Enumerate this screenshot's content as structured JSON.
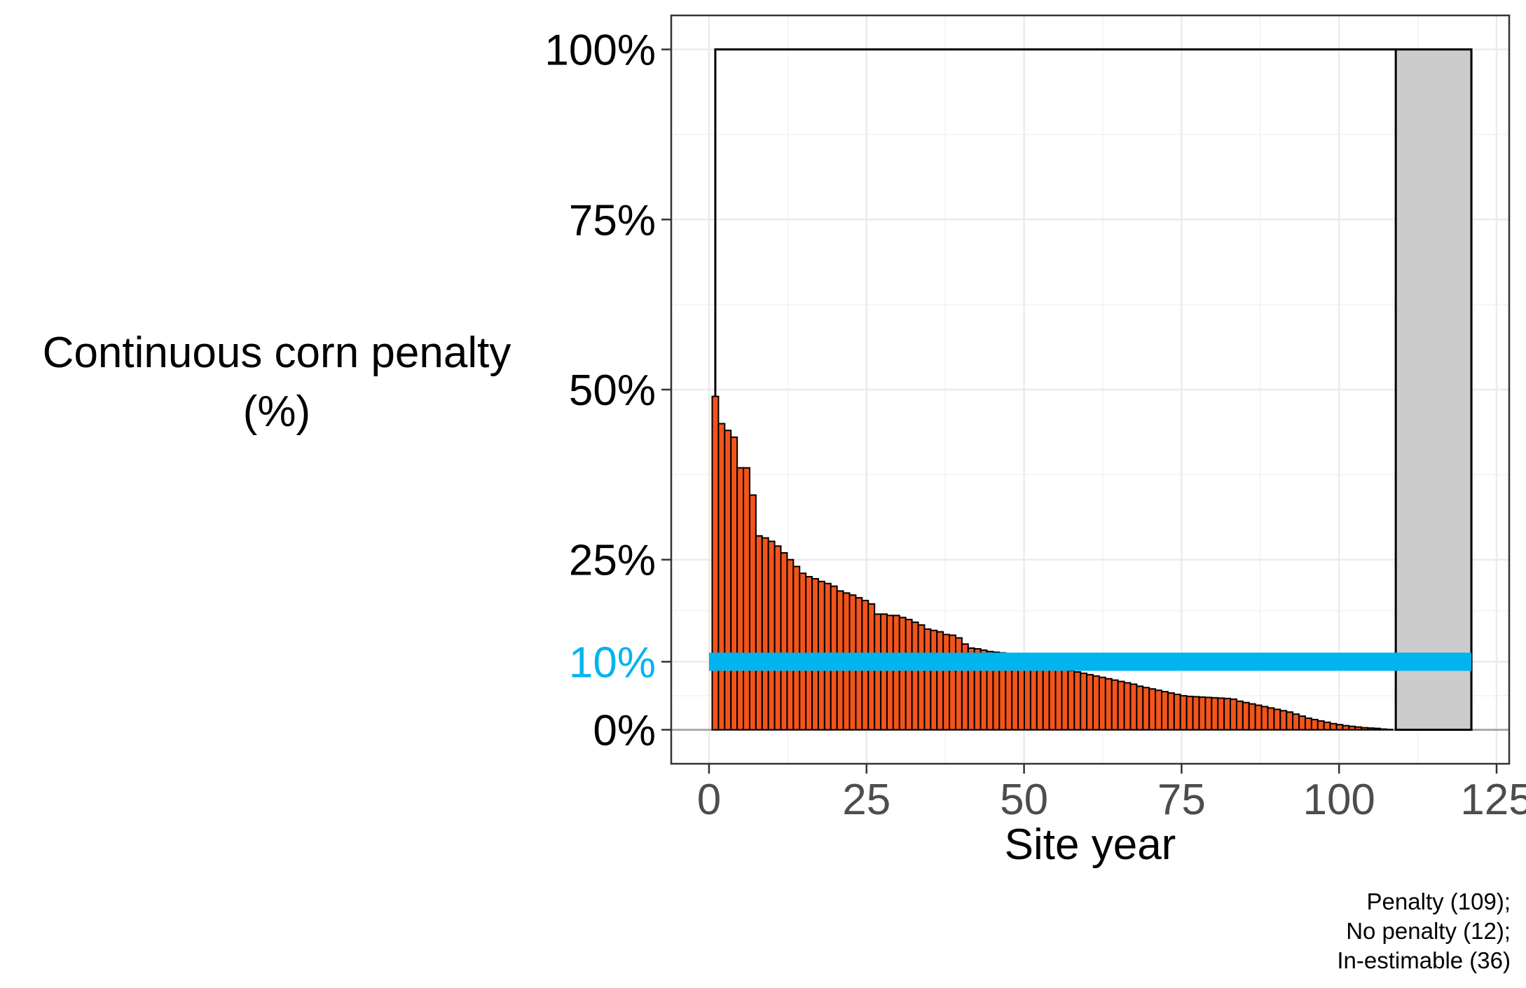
{
  "chart_data": {
    "type": "bar",
    "title": "",
    "xlabel": "Site year",
    "ylabel_lines": [
      "Continuous corn penalty",
      "(%)"
    ],
    "xlim": [
      -6,
      127
    ],
    "ylim": [
      -5,
      105
    ],
    "x_ticks": [
      0,
      25,
      50,
      75,
      100,
      125
    ],
    "x_tick_labels": [
      "0",
      "25",
      "50",
      "75",
      "100",
      "125"
    ],
    "y_ticks": [
      0,
      10,
      25,
      50,
      75,
      100
    ],
    "y_tick_labels": [
      "0%",
      "10%",
      "25%",
      "50%",
      "75%",
      "100%"
    ],
    "grid": true,
    "legend": "none",
    "reference_line": {
      "y": 10,
      "x_range": [
        0,
        121
      ],
      "label": "10%",
      "color": "#00B4F0"
    },
    "penalty_bars": {
      "x_start": 1,
      "x_end": 109,
      "fill": "#F2541B",
      "values": [
        49,
        45,
        44,
        43,
        38.5,
        38.5,
        34.5,
        28.5,
        28.2,
        27.7,
        27,
        26,
        25,
        24,
        23,
        22.5,
        22.2,
        21.8,
        21.5,
        21.1,
        20.4,
        20.1,
        19.8,
        19.4,
        19,
        18.5,
        17,
        17,
        16.8,
        16.8,
        16.5,
        16.2,
        15.8,
        15.4,
        14.8,
        14.6,
        14.4,
        14,
        13.9,
        13.5,
        12.6,
        12,
        11.9,
        11.7,
        11.5,
        11.4,
        11.3,
        11.2,
        11.1,
        11.0,
        10.8,
        10.6,
        10.4,
        10.2,
        10.0,
        9.3,
        9.0,
        8.7,
        8.5,
        8.3,
        8.1,
        7.9,
        7.7,
        7.5,
        7.3,
        7.1,
        6.9,
        6.7,
        6.4,
        6.2,
        6.0,
        5.8,
        5.6,
        5.4,
        5.2,
        5.0,
        4.9,
        4.85,
        4.8,
        4.75,
        4.7,
        4.65,
        4.6,
        4.5,
        4.2,
        4.0,
        3.8,
        3.6,
        3.4,
        3.2,
        3.0,
        2.8,
        2.6,
        2.3,
        2.0,
        1.7,
        1.5,
        1.3,
        1.1,
        0.9,
        0.75,
        0.6,
        0.5,
        0.4,
        0.3,
        0.25,
        0.2,
        0.1,
        0.05
      ]
    },
    "no_penalty_region": {
      "x_range": [
        109,
        121
      ],
      "y": 100,
      "fill": "#CCCCCC"
    },
    "outline_box": {
      "x_range": [
        1,
        121
      ],
      "y": 100
    },
    "caption_lines": [
      "Penalty (109);",
      "No penalty (12);",
      "In-estimable (36)"
    ]
  }
}
